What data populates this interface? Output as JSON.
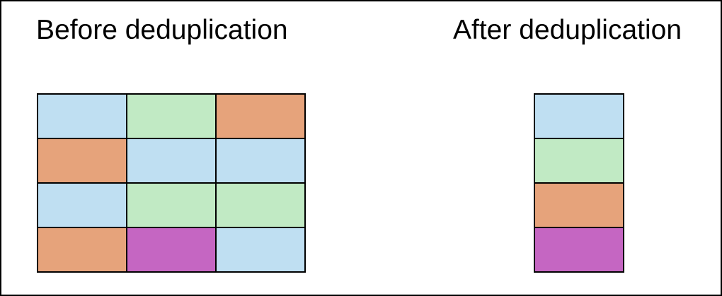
{
  "colors": {
    "blue": "#BFDFF2",
    "green": "#C1EAC4",
    "orange": "#E6A37B",
    "purple": "#C566C2"
  },
  "before": {
    "title": "Before deduplication",
    "rows": [
      [
        "blue",
        "green",
        "orange"
      ],
      [
        "orange",
        "blue",
        "blue"
      ],
      [
        "blue",
        "green",
        "green"
      ],
      [
        "orange",
        "purple",
        "blue"
      ]
    ]
  },
  "after": {
    "title": "After deduplication",
    "rows": [
      [
        "blue"
      ],
      [
        "green"
      ],
      [
        "orange"
      ],
      [
        "purple"
      ]
    ]
  }
}
